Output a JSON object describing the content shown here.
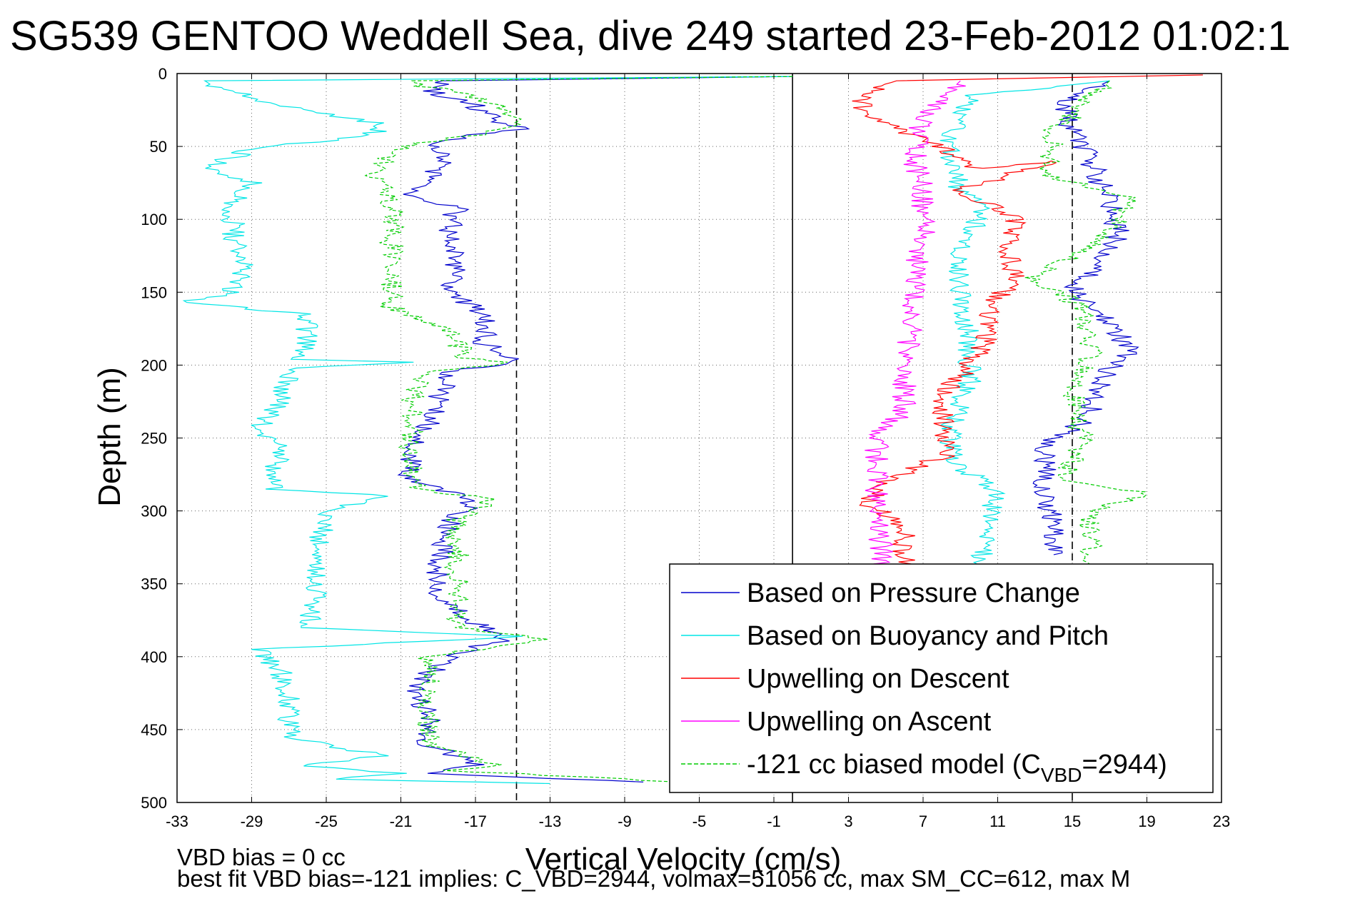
{
  "chart_data": {
    "type": "line",
    "title": "SG539 GENTOO Weddell Sea, dive 249 started 23-Feb-2012 01:02:1",
    "xlabel": "Vertical Velocity (cm/s)",
    "ylabel": "Depth (m)",
    "xlim": [
      -33,
      23
    ],
    "ylim": [
      0,
      500
    ],
    "y_reversed": true,
    "grid": true,
    "x_ticks": [
      "-33",
      "-29",
      "-25",
      "-21",
      "-17",
      "-13",
      "-9",
      "-5",
      "-1",
      "3",
      "7",
      "11",
      "15",
      "19",
      "23"
    ],
    "y_ticks": [
      "0",
      "50",
      "100",
      "150",
      "200",
      "250",
      "300",
      "350",
      "400",
      "450",
      "500"
    ],
    "vertical_lines": [
      {
        "x": -14.8,
        "style": "dashed",
        "color": "#000000"
      },
      {
        "x": 0,
        "style": "solid",
        "color": "#000000"
      },
      {
        "x": 15.0,
        "style": "dashed",
        "color": "#000000"
      }
    ],
    "legend_position": "bottom-right",
    "series": [
      {
        "name": "Based on Pressure Change",
        "color": "#0000cc",
        "style": "solid",
        "points": [
          {
            "x": 0,
            "y": 2
          },
          {
            "x": -18.5,
            "y": 5
          },
          {
            "x": -19.5,
            "y": 12
          },
          {
            "x": -17,
            "y": 22
          },
          {
            "x": -16,
            "y": 32
          },
          {
            "x": -14.5,
            "y": 38
          },
          {
            "x": -17,
            "y": 42
          },
          {
            "x": -19.5,
            "y": 48
          },
          {
            "x": -18.5,
            "y": 60
          },
          {
            "x": -19.5,
            "y": 72
          },
          {
            "x": -20.5,
            "y": 84
          },
          {
            "x": -18,
            "y": 92
          },
          {
            "x": -18.5,
            "y": 110
          },
          {
            "x": -18,
            "y": 130
          },
          {
            "x": -18.5,
            "y": 150
          },
          {
            "x": -16.5,
            "y": 165
          },
          {
            "x": -16.5,
            "y": 185
          },
          {
            "x": -15,
            "y": 198
          },
          {
            "x": -18.5,
            "y": 205
          },
          {
            "x": -19,
            "y": 225
          },
          {
            "x": -19.5,
            "y": 240
          },
          {
            "x": -20.5,
            "y": 260
          },
          {
            "x": -20.5,
            "y": 280
          },
          {
            "x": -17,
            "y": 292
          },
          {
            "x": -18.5,
            "y": 310
          },
          {
            "x": -19,
            "y": 340
          },
          {
            "x": -19,
            "y": 360
          },
          {
            "x": -15.5,
            "y": 388
          },
          {
            "x": -18,
            "y": 398
          },
          {
            "x": -20.5,
            "y": 420
          },
          {
            "x": -19.5,
            "y": 440
          },
          {
            "x": -19.5,
            "y": 460
          },
          {
            "x": -17,
            "y": 474
          },
          {
            "x": -19,
            "y": 480
          },
          {
            "x": -8,
            "y": 486
          }
        ]
      },
      {
        "name": "Based on Pressure Change",
        "color": "#0000cc",
        "style": "solid",
        "points": [
          {
            "x": 17,
            "y": 5
          },
          {
            "x": 14.5,
            "y": 20
          },
          {
            "x": 15,
            "y": 40
          },
          {
            "x": 16,
            "y": 60
          },
          {
            "x": 17,
            "y": 90
          },
          {
            "x": 17.5,
            "y": 110
          },
          {
            "x": 16.5,
            "y": 130
          },
          {
            "x": 15,
            "y": 150
          },
          {
            "x": 17,
            "y": 170
          },
          {
            "x": 18,
            "y": 190
          },
          {
            "x": 16.5,
            "y": 210
          },
          {
            "x": 16,
            "y": 235
          },
          {
            "x": 13.5,
            "y": 255
          },
          {
            "x": 13.5,
            "y": 280
          },
          {
            "x": 13.8,
            "y": 300
          },
          {
            "x": 14,
            "y": 330
          }
        ]
      },
      {
        "name": "Based on Buoyancy and Pitch",
        "color": "#00e5e5",
        "style": "solid",
        "points": [
          {
            "x": 0,
            "y": 2
          },
          {
            "x": -32,
            "y": 5
          },
          {
            "x": -28,
            "y": 20
          },
          {
            "x": -22,
            "y": 35
          },
          {
            "x": -22.5,
            "y": 42
          },
          {
            "x": -29,
            "y": 52
          },
          {
            "x": -31.5,
            "y": 65
          },
          {
            "x": -29,
            "y": 75
          },
          {
            "x": -30,
            "y": 90
          },
          {
            "x": -30,
            "y": 110
          },
          {
            "x": -29.5,
            "y": 130
          },
          {
            "x": -30,
            "y": 150
          },
          {
            "x": -32.5,
            "y": 157
          },
          {
            "x": -26,
            "y": 165
          },
          {
            "x": -26,
            "y": 180
          },
          {
            "x": -26.5,
            "y": 196
          },
          {
            "x": -20.5,
            "y": 198
          },
          {
            "x": -27,
            "y": 202
          },
          {
            "x": -27.5,
            "y": 225
          },
          {
            "x": -28.5,
            "y": 240
          },
          {
            "x": -27.5,
            "y": 260
          },
          {
            "x": -28,
            "y": 285
          },
          {
            "x": -21.5,
            "y": 290
          },
          {
            "x": -25,
            "y": 300
          },
          {
            "x": -25.5,
            "y": 330
          },
          {
            "x": -25.5,
            "y": 360
          },
          {
            "x": -26,
            "y": 380
          },
          {
            "x": -14.5,
            "y": 386
          },
          {
            "x": -28.5,
            "y": 395
          },
          {
            "x": -27.5,
            "y": 410
          },
          {
            "x": -27,
            "y": 430
          },
          {
            "x": -27,
            "y": 455
          },
          {
            "x": -22,
            "y": 468
          },
          {
            "x": -26.5,
            "y": 475
          },
          {
            "x": -21,
            "y": 480
          },
          {
            "x": -25,
            "y": 484
          },
          {
            "x": -13,
            "y": 487
          }
        ]
      },
      {
        "name": "Based on Buoyancy and Pitch",
        "color": "#00e5e5",
        "style": "solid",
        "points": [
          {
            "x": 17,
            "y": 5
          },
          {
            "x": 9.5,
            "y": 15
          },
          {
            "x": 8.5,
            "y": 40
          },
          {
            "x": 8.5,
            "y": 60
          },
          {
            "x": 9,
            "y": 80
          },
          {
            "x": 10.5,
            "y": 90
          },
          {
            "x": 9,
            "y": 120
          },
          {
            "x": 9,
            "y": 150
          },
          {
            "x": 9.5,
            "y": 180
          },
          {
            "x": 9.5,
            "y": 210
          },
          {
            "x": 8.5,
            "y": 240
          },
          {
            "x": 8.5,
            "y": 265
          },
          {
            "x": 11,
            "y": 288
          },
          {
            "x": 10.5,
            "y": 300
          },
          {
            "x": 10.5,
            "y": 320
          },
          {
            "x": 10,
            "y": 340
          }
        ]
      },
      {
        "name": "Upwelling on Descent",
        "color": "#ff0000",
        "style": "solid",
        "points": [
          {
            "x": 22,
            "y": 1
          },
          {
            "x": 5,
            "y": 5
          },
          {
            "x": 3.5,
            "y": 20
          },
          {
            "x": 5,
            "y": 35
          },
          {
            "x": 8,
            "y": 50
          },
          {
            "x": 10,
            "y": 65
          },
          {
            "x": 14,
            "y": 60
          },
          {
            "x": 9,
            "y": 80
          },
          {
            "x": 12,
            "y": 100
          },
          {
            "x": 11.5,
            "y": 120
          },
          {
            "x": 12,
            "y": 140
          },
          {
            "x": 10.5,
            "y": 160
          },
          {
            "x": 10.5,
            "y": 180
          },
          {
            "x": 9.5,
            "y": 200
          },
          {
            "x": 8,
            "y": 220
          },
          {
            "x": 8,
            "y": 240
          },
          {
            "x": 8.5,
            "y": 260
          },
          {
            "x": 5,
            "y": 280
          },
          {
            "x": 4,
            "y": 295
          },
          {
            "x": 6,
            "y": 310
          },
          {
            "x": 6,
            "y": 330
          },
          {
            "x": 6,
            "y": 340
          }
        ]
      },
      {
        "name": "Upwelling on Ascent",
        "color": "#ff00ff",
        "style": "solid",
        "points": [
          {
            "x": 9,
            "y": 5
          },
          {
            "x": 7,
            "y": 30
          },
          {
            "x": 6.5,
            "y": 60
          },
          {
            "x": 7,
            "y": 80
          },
          {
            "x": 7,
            "y": 110
          },
          {
            "x": 6.5,
            "y": 140
          },
          {
            "x": 6.5,
            "y": 170
          },
          {
            "x": 6,
            "y": 200
          },
          {
            "x": 6,
            "y": 230
          },
          {
            "x": 4.5,
            "y": 250
          },
          {
            "x": 4.5,
            "y": 280
          },
          {
            "x": 4.5,
            "y": 310
          },
          {
            "x": 5,
            "y": 340
          }
        ]
      },
      {
        "name": "-121 cc biased model (CVBD=2944)",
        "color": "#00cc00",
        "style": "dashed",
        "points": [
          {
            "x": 0,
            "y": 2
          },
          {
            "x": -21,
            "y": 5
          },
          {
            "x": -17.5,
            "y": 15
          },
          {
            "x": -15.5,
            "y": 25
          },
          {
            "x": -15,
            "y": 35
          },
          {
            "x": -17,
            "y": 42
          },
          {
            "x": -21,
            "y": 50
          },
          {
            "x": -22.5,
            "y": 70
          },
          {
            "x": -21.5,
            "y": 90
          },
          {
            "x": -21.5,
            "y": 110
          },
          {
            "x": -21.5,
            "y": 140
          },
          {
            "x": -21.5,
            "y": 160
          },
          {
            "x": -18.5,
            "y": 175
          },
          {
            "x": -17.5,
            "y": 195
          },
          {
            "x": -15,
            "y": 198
          },
          {
            "x": -20,
            "y": 205
          },
          {
            "x": -20.5,
            "y": 230
          },
          {
            "x": -20.5,
            "y": 260
          },
          {
            "x": -20,
            "y": 285
          },
          {
            "x": -16,
            "y": 292
          },
          {
            "x": -18,
            "y": 305
          },
          {
            "x": -18,
            "y": 340
          },
          {
            "x": -18,
            "y": 380
          },
          {
            "x": -13.5,
            "y": 388
          },
          {
            "x": -19.5,
            "y": 400
          },
          {
            "x": -19.5,
            "y": 430
          },
          {
            "x": -19.5,
            "y": 460
          },
          {
            "x": -16,
            "y": 474
          },
          {
            "x": -18.5,
            "y": 478
          },
          {
            "x": -6,
            "y": 486
          }
        ]
      },
      {
        "name": "-121 cc biased model (CVBD=2944)",
        "color": "#00cc00",
        "style": "dashed",
        "points": [
          {
            "x": 17,
            "y": 5
          },
          {
            "x": 14,
            "y": 40
          },
          {
            "x": 13.5,
            "y": 70
          },
          {
            "x": 18,
            "y": 85
          },
          {
            "x": 17,
            "y": 110
          },
          {
            "x": 13,
            "y": 140
          },
          {
            "x": 15.5,
            "y": 160
          },
          {
            "x": 16,
            "y": 190
          },
          {
            "x": 15,
            "y": 220
          },
          {
            "x": 15.5,
            "y": 250
          },
          {
            "x": 14.5,
            "y": 280
          },
          {
            "x": 19,
            "y": 288
          },
          {
            "x": 16,
            "y": 300
          },
          {
            "x": 16,
            "y": 330
          },
          {
            "x": 15.5,
            "y": 340
          }
        ]
      }
    ],
    "legend": [
      {
        "label": "Based on Pressure Change",
        "color": "#0000cc",
        "style": "solid"
      },
      {
        "label": "Based on Buoyancy and Pitch",
        "color": "#00e5e5",
        "style": "solid"
      },
      {
        "label": "Upwelling on Descent",
        "color": "#ff0000",
        "style": "solid"
      },
      {
        "label": "Upwelling on Ascent",
        "color": "#ff00ff",
        "style": "solid"
      },
      {
        "label": "-121 cc biased model (C",
        "sub": "VBD",
        "suffix": "=2944)",
        "color": "#00cc00",
        "style": "dashed"
      }
    ],
    "footer": [
      "VBD bias = 0 cc",
      "best fit VBD bias=-121 implies: C_VBD=2944, volmax=51056 cc, max SM_CC=612, max M"
    ]
  }
}
